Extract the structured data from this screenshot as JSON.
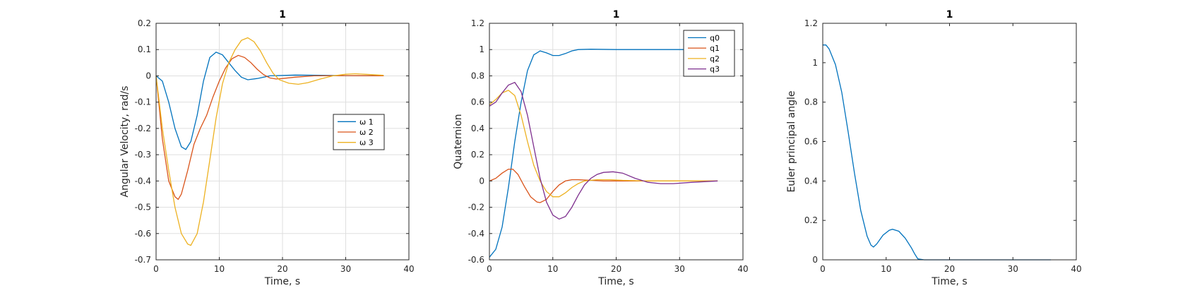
{
  "colors": {
    "c1": "#0072BD",
    "c2": "#D95319",
    "c3": "#EDB120",
    "c4": "#7E2F8E"
  },
  "chart_data": [
    {
      "type": "line",
      "title": "1",
      "xlabel": "Time, s",
      "ylabel": "Angular Velocity, rad/s",
      "xlim": [
        0,
        40
      ],
      "ylim": [
        -0.7,
        0.2
      ],
      "xticks": [
        "0",
        "10",
        "20",
        "30",
        "40"
      ],
      "yticks": [
        "-0.7",
        "-0.6",
        "-0.5",
        "-0.4",
        "-0.3",
        "-0.2",
        "-0.1",
        "0",
        "0.1",
        "0.2"
      ],
      "grid": true,
      "legend": "right",
      "series": [
        {
          "name": "ω 1",
          "color": "#0072BD",
          "points": [
            [
              0,
              0
            ],
            [
              1,
              -0.02
            ],
            [
              2,
              -0.1
            ],
            [
              3,
              -0.2
            ],
            [
              4,
              -0.27
            ],
            [
              4.7,
              -0.28
            ],
            [
              5.5,
              -0.25
            ],
            [
              6.5,
              -0.15
            ],
            [
              7.5,
              -0.02
            ],
            [
              8.5,
              0.07
            ],
            [
              9.5,
              0.09
            ],
            [
              10.5,
              0.08
            ],
            [
              11.5,
              0.05
            ],
            [
              12.5,
              0.02
            ],
            [
              13.5,
              -0.005
            ],
            [
              14.5,
              -0.015
            ],
            [
              16,
              -0.01
            ],
            [
              18,
              0
            ],
            [
              22,
              0.003
            ],
            [
              26,
              0.002
            ],
            [
              30,
              0.001
            ],
            [
              36,
              0
            ]
          ]
        },
        {
          "name": "ω 2",
          "color": "#D95319",
          "points": [
            [
              0,
              0
            ],
            [
              0.5,
              -0.12
            ],
            [
              1,
              -0.24
            ],
            [
              2,
              -0.4
            ],
            [
              3,
              -0.46
            ],
            [
              3.5,
              -0.47
            ],
            [
              4,
              -0.45
            ],
            [
              5,
              -0.36
            ],
            [
              6,
              -0.26
            ],
            [
              7,
              -0.2
            ],
            [
              8,
              -0.15
            ],
            [
              9,
              -0.08
            ],
            [
              10,
              -0.02
            ],
            [
              11,
              0.03
            ],
            [
              12,
              0.065
            ],
            [
              13,
              0.078
            ],
            [
              14,
              0.07
            ],
            [
              15,
              0.05
            ],
            [
              16,
              0.025
            ],
            [
              17,
              0.005
            ],
            [
              18,
              -0.008
            ],
            [
              19,
              -0.012
            ],
            [
              20,
              -0.01
            ],
            [
              22,
              -0.005
            ],
            [
              25,
              0
            ],
            [
              30,
              0.001
            ],
            [
              36,
              0
            ]
          ]
        },
        {
          "name": "ω 3",
          "color": "#EDB120",
          "points": [
            [
              0,
              0
            ],
            [
              0.5,
              -0.1
            ],
            [
              1,
              -0.2
            ],
            [
              2,
              -0.36
            ],
            [
              3,
              -0.5
            ],
            [
              4,
              -0.6
            ],
            [
              5,
              -0.64
            ],
            [
              5.5,
              -0.645
            ],
            [
              6.5,
              -0.6
            ],
            [
              7.5,
              -0.48
            ],
            [
              8.5,
              -0.32
            ],
            [
              9.5,
              -0.16
            ],
            [
              10.5,
              -0.03
            ],
            [
              11.5,
              0.05
            ],
            [
              12.5,
              0.1
            ],
            [
              13.5,
              0.135
            ],
            [
              14.5,
              0.145
            ],
            [
              15.5,
              0.13
            ],
            [
              16.5,
              0.095
            ],
            [
              17.5,
              0.05
            ],
            [
              18.5,
              0.01
            ],
            [
              19.5,
              -0.015
            ],
            [
              21,
              -0.028
            ],
            [
              22.5,
              -0.032
            ],
            [
              24,
              -0.026
            ],
            [
              26,
              -0.012
            ],
            [
              28,
              0
            ],
            [
              30,
              0.006
            ],
            [
              31.5,
              0.008
            ],
            [
              33,
              0.006
            ],
            [
              36,
              0.002
            ]
          ]
        }
      ]
    },
    {
      "type": "line",
      "title": "1",
      "xlabel": "Time, s",
      "ylabel": "Quaternion",
      "xlim": [
        0,
        40
      ],
      "ylim": [
        -0.6,
        1.2
      ],
      "xticks": [
        "0",
        "10",
        "20",
        "30",
        "40"
      ],
      "yticks": [
        "-0.6",
        "-0.4",
        "-0.2",
        "0",
        "0.2",
        "0.4",
        "0.6",
        "0.8",
        "1",
        "1.2"
      ],
      "grid": true,
      "legend": "top-right",
      "series": [
        {
          "name": "q0",
          "color": "#0072BD",
          "points": [
            [
              0,
              -0.58
            ],
            [
              1,
              -0.52
            ],
            [
              2,
              -0.35
            ],
            [
              3,
              -0.05
            ],
            [
              4,
              0.3
            ],
            [
              5,
              0.6
            ],
            [
              6,
              0.84
            ],
            [
              7,
              0.96
            ],
            [
              8,
              0.99
            ],
            [
              9,
              0.975
            ],
            [
              10,
              0.955
            ],
            [
              11,
              0.955
            ],
            [
              12,
              0.97
            ],
            [
              13,
              0.99
            ],
            [
              14,
              1
            ],
            [
              16,
              1.003
            ],
            [
              20,
              1
            ],
            [
              25,
              1
            ],
            [
              30,
              1
            ],
            [
              36,
              1
            ]
          ]
        },
        {
          "name": "q1",
          "color": "#D95319",
          "points": [
            [
              0,
              0
            ],
            [
              1,
              0.02
            ],
            [
              2,
              0.06
            ],
            [
              3,
              0.09
            ],
            [
              3.7,
              0.09
            ],
            [
              4.5,
              0.05
            ],
            [
              5.5,
              -0.04
            ],
            [
              6.5,
              -0.12
            ],
            [
              7.5,
              -0.16
            ],
            [
              8,
              -0.165
            ],
            [
              9,
              -0.14
            ],
            [
              10,
              -0.08
            ],
            [
              11,
              -0.03
            ],
            [
              12,
              0
            ],
            [
              13,
              0.01
            ],
            [
              14,
              0.01
            ],
            [
              16,
              0.005
            ],
            [
              18,
              0
            ],
            [
              22,
              0
            ],
            [
              30,
              0
            ],
            [
              36,
              0
            ]
          ]
        },
        {
          "name": "q2",
          "color": "#EDB120",
          "points": [
            [
              0,
              0.58
            ],
            [
              1,
              0.62
            ],
            [
              2,
              0.67
            ],
            [
              3,
              0.69
            ],
            [
              4,
              0.65
            ],
            [
              5,
              0.5
            ],
            [
              6,
              0.3
            ],
            [
              7,
              0.12
            ],
            [
              8,
              0
            ],
            [
              9,
              -0.08
            ],
            [
              10,
              -0.12
            ],
            [
              11,
              -0.12
            ],
            [
              12,
              -0.09
            ],
            [
              13,
              -0.05
            ],
            [
              14,
              -0.02
            ],
            [
              15,
              0
            ],
            [
              17,
              0.01
            ],
            [
              19,
              0.01
            ],
            [
              21,
              0.005
            ],
            [
              25,
              0
            ],
            [
              30,
              0
            ],
            [
              36,
              0
            ]
          ]
        },
        {
          "name": "q3",
          "color": "#7E2F8E",
          "points": [
            [
              0,
              0.57
            ],
            [
              1,
              0.6
            ],
            [
              2,
              0.67
            ],
            [
              3,
              0.73
            ],
            [
              4,
              0.75
            ],
            [
              5,
              0.68
            ],
            [
              6,
              0.5
            ],
            [
              7,
              0.26
            ],
            [
              8,
              0.02
            ],
            [
              9,
              -0.16
            ],
            [
              10,
              -0.26
            ],
            [
              11,
              -0.29
            ],
            [
              12,
              -0.27
            ],
            [
              13,
              -0.2
            ],
            [
              14,
              -0.11
            ],
            [
              15,
              -0.03
            ],
            [
              16,
              0.02
            ],
            [
              17,
              0.05
            ],
            [
              18,
              0.065
            ],
            [
              19.5,
              0.07
            ],
            [
              21,
              0.06
            ],
            [
              23,
              0.02
            ],
            [
              25,
              -0.01
            ],
            [
              27,
              -0.02
            ],
            [
              29,
              -0.02
            ],
            [
              32,
              -0.01
            ],
            [
              36,
              0
            ]
          ]
        }
      ]
    },
    {
      "type": "line",
      "title": "1",
      "xlabel": "Time, s",
      "ylabel": "Euler principal angle",
      "xlim": [
        0,
        40
      ],
      "ylim": [
        0,
        1.2
      ],
      "xticks": [
        "0",
        "10",
        "20",
        "30",
        "40"
      ],
      "yticks": [
        "0",
        "0.2",
        "0.4",
        "0.6",
        "0.8",
        "1",
        "1.2"
      ],
      "grid": false,
      "series": [
        {
          "name": "",
          "color": "#0072BD",
          "points": [
            [
              0,
              1.09
            ],
            [
              0.5,
              1.09
            ],
            [
              1,
              1.07
            ],
            [
              2,
              0.99
            ],
            [
              3,
              0.85
            ],
            [
              4,
              0.65
            ],
            [
              5,
              0.44
            ],
            [
              6,
              0.25
            ],
            [
              7,
              0.12
            ],
            [
              7.6,
              0.075
            ],
            [
              8,
              0.065
            ],
            [
              8.5,
              0.08
            ],
            [
              9.5,
              0.125
            ],
            [
              10.5,
              0.15
            ],
            [
              11,
              0.155
            ],
            [
              12,
              0.145
            ],
            [
              13,
              0.11
            ],
            [
              14,
              0.06
            ],
            [
              14.5,
              0.03
            ],
            [
              15,
              0.005
            ],
            [
              16,
              0
            ],
            [
              20,
              0
            ],
            [
              25,
              0
            ],
            [
              30,
              0
            ],
            [
              36,
              0
            ]
          ]
        }
      ]
    }
  ]
}
